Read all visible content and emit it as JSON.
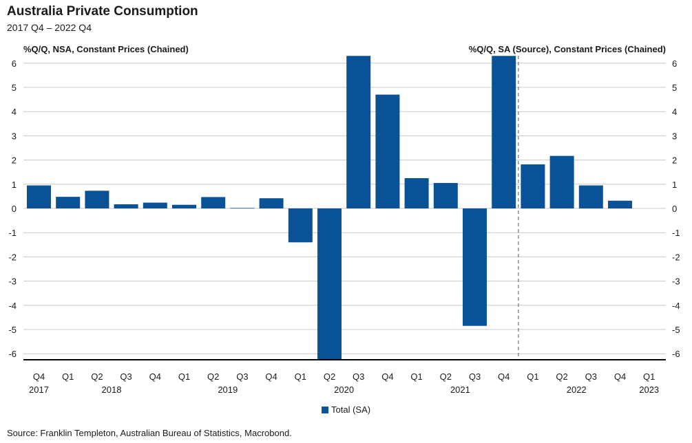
{
  "title": "Australia Private Consumption",
  "subtitle": "2017 Q4 – 2022 Q4",
  "source": "Source: Franklin Templeton, Australian Bureau of Statistics, Macrobond.",
  "chart_data": {
    "type": "bar",
    "y_left_label": "%Q/Q, NSA, Constant Prices (Chained)",
    "y_right_label": "%Q/Q, SA (Source), Constant Prices (Chained)",
    "ylim": [
      -6.3,
      6.3
    ],
    "yticks": [
      6,
      5,
      4,
      3,
      2,
      1,
      0,
      -1,
      -2,
      -3,
      -4,
      -5,
      -6
    ],
    "ytick_labels": [
      "6",
      "5",
      "4",
      "3",
      "2",
      "1",
      "0",
      "-1",
      "-2",
      "-3",
      "-4",
      "-5",
      "-6"
    ],
    "grid": true,
    "quarters": [
      "Q4",
      "Q1",
      "Q2",
      "Q3",
      "Q4",
      "Q1",
      "Q2",
      "Q3",
      "Q4",
      "Q1",
      "Q2",
      "Q3",
      "Q4",
      "Q1",
      "Q2",
      "Q3",
      "Q4",
      "Q1",
      "Q2",
      "Q3",
      "Q4",
      "Q1"
    ],
    "year_labels": [
      {
        "index": 0,
        "label": "2017"
      },
      {
        "index": 2.5,
        "label": "2018"
      },
      {
        "index": 6.5,
        "label": "2019"
      },
      {
        "index": 10.5,
        "label": "2020"
      },
      {
        "index": 14.5,
        "label": "2021"
      },
      {
        "index": 18.5,
        "label": "2022"
      },
      {
        "index": 21,
        "label": "2023"
      }
    ],
    "categories": [
      "2017 Q4",
      "2018 Q1",
      "2018 Q2",
      "2018 Q3",
      "2018 Q4",
      "2019 Q1",
      "2019 Q2",
      "2019 Q3",
      "2019 Q4",
      "2020 Q1",
      "2020 Q2",
      "2020 Q3",
      "2020 Q4",
      "2021 Q1",
      "2021 Q2",
      "2021 Q3",
      "2021 Q4",
      "2022 Q1",
      "2022 Q2",
      "2022 Q3",
      "2022 Q4",
      "2023 Q1"
    ],
    "series": [
      {
        "name": "Total (SA)",
        "color": "#0a5297",
        "values": [
          0.95,
          0.48,
          0.73,
          0.17,
          0.24,
          0.15,
          0.47,
          0.02,
          0.42,
          -1.4,
          -6.3,
          6.3,
          4.7,
          1.25,
          1.05,
          -4.85,
          6.3,
          1.82,
          2.17,
          0.95,
          0.32,
          null
        ]
      }
    ],
    "divider_after_index": 16,
    "legend_position": "bottom"
  }
}
